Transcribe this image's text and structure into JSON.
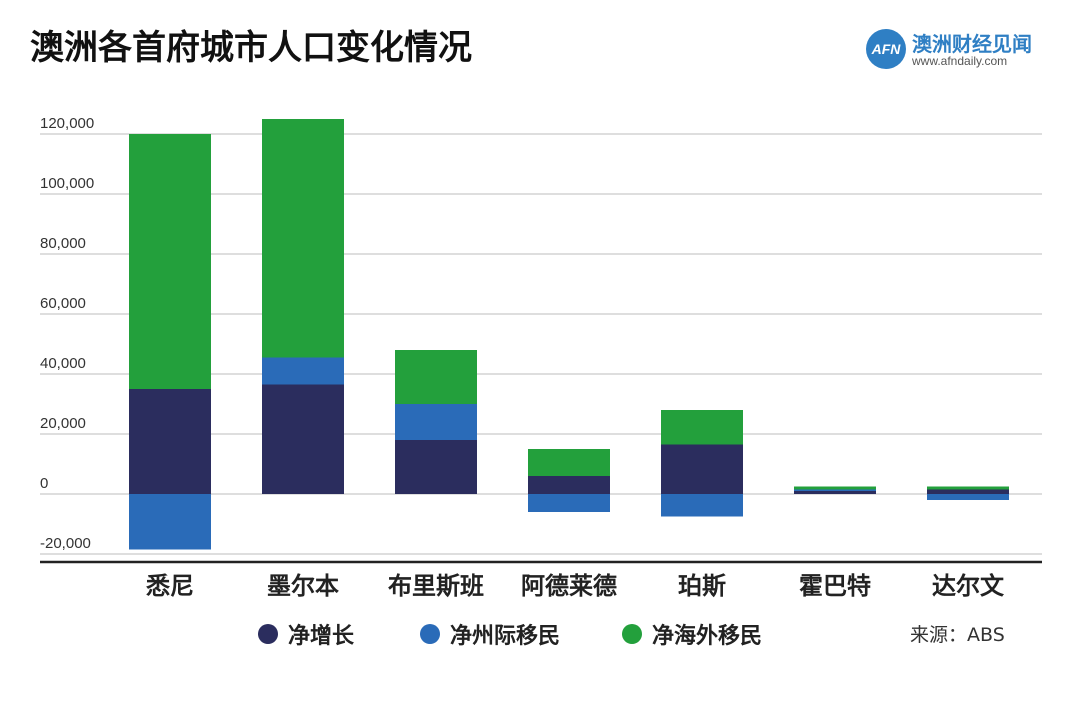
{
  "header": {
    "title": "澳洲各首府城市人口变化情况"
  },
  "brand": {
    "logo_text": "AFN",
    "name": "澳洲财经见闻",
    "url": "www.afndaily.com"
  },
  "source": "来源：ABS",
  "colors": {
    "net_growth": "#2b2d5e",
    "interstate": "#2a6bb8",
    "overseas": "#23a03c",
    "grid": "#bdbdbd",
    "axis": "#222222",
    "brand": "#2f7fc4"
  },
  "chart_data": {
    "type": "bar",
    "stacked": true,
    "title": "澳洲各首府城市人口变化情况",
    "categories": [
      "悉尼",
      "墨尔本",
      "布里斯班",
      "阿德莱德",
      "珀斯",
      "霍巴特",
      "达尔文"
    ],
    "series": [
      {
        "key": "net_growth",
        "name": "净增长",
        "values": [
          35000,
          36500,
          18000,
          6000,
          16500,
          1000,
          1500
        ]
      },
      {
        "key": "interstate",
        "name": "净州际移民",
        "values": [
          -18500,
          9000,
          12000,
          -6000,
          -7500,
          500,
          -2000
        ]
      },
      {
        "key": "overseas",
        "name": "净海外移民",
        "values": [
          85000,
          79500,
          18000,
          9000,
          11500,
          1000,
          1000
        ]
      }
    ],
    "yticks": [
      120000,
      100000,
      80000,
      60000,
      40000,
      20000,
      0,
      -20000
    ],
    "ytick_labels": [
      "120,000",
      "100,000",
      "80,000",
      "60,000",
      "40,000",
      "20,000",
      "0",
      "-20,000"
    ],
    "ylim": [
      -22000,
      125000
    ],
    "xlabel": "",
    "ylabel": "",
    "grid": true,
    "legend_position": "bottom"
  }
}
